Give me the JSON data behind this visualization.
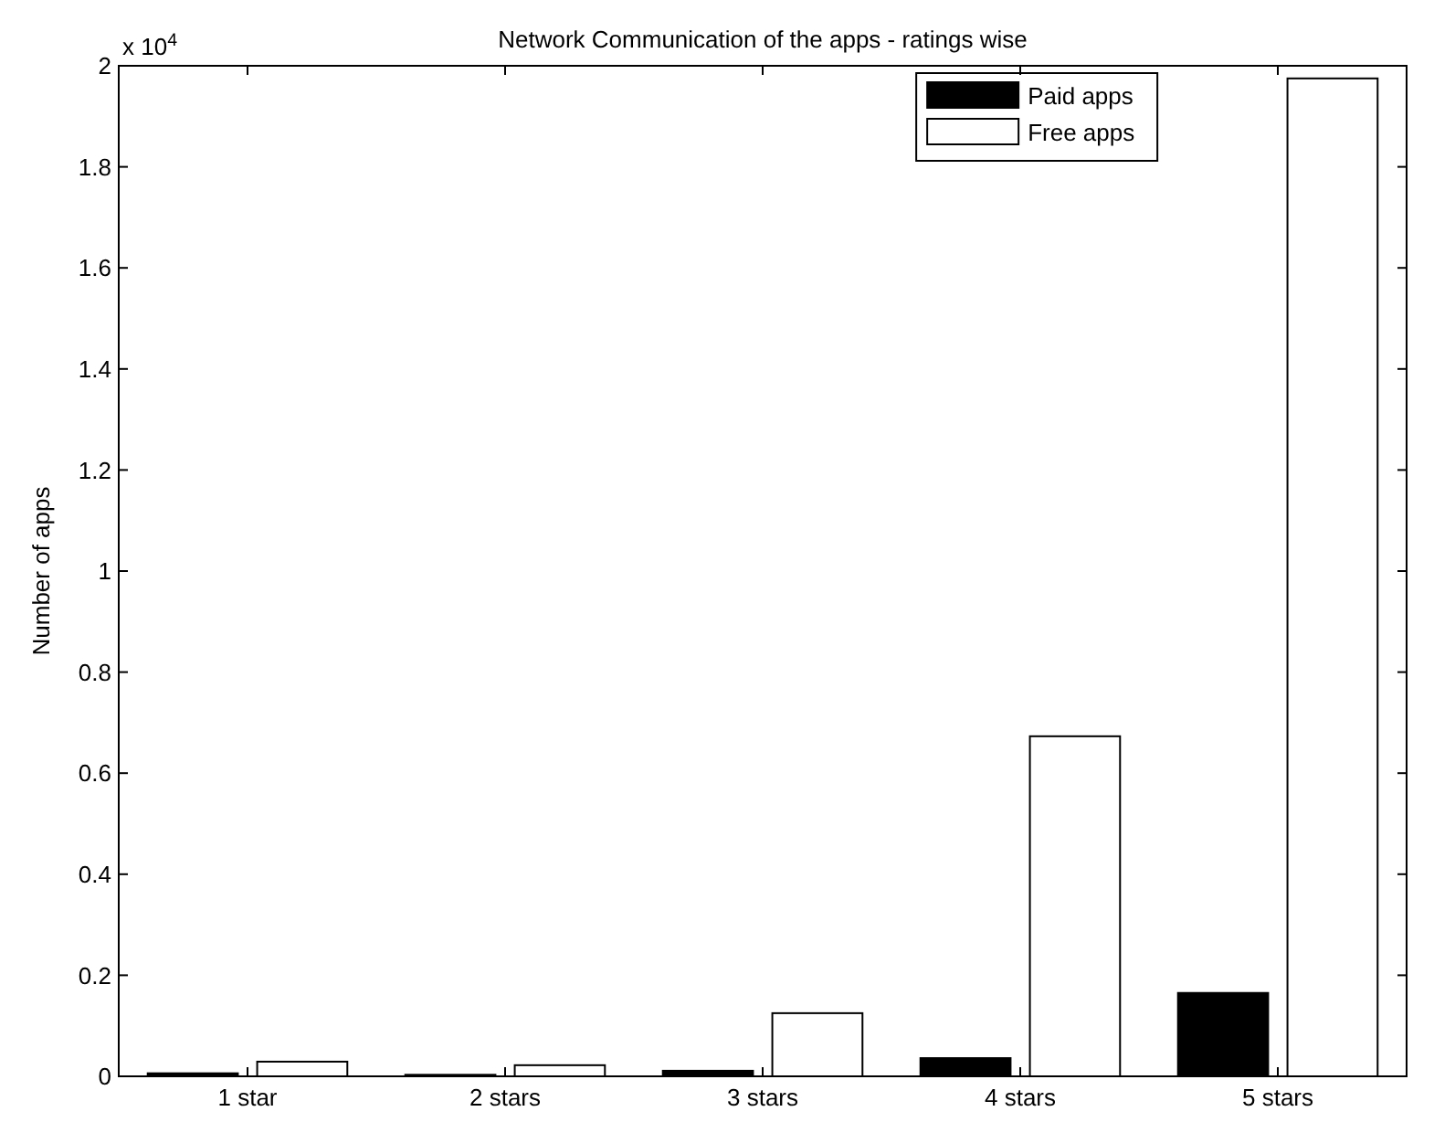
{
  "chart_data": {
    "type": "bar",
    "title": "Network Communication of the apps - ratings wise",
    "ylabel": "Number of apps",
    "categories": [
      "1 star",
      "2 stars",
      "3 stars",
      "4 stars",
      "5 stars"
    ],
    "series": [
      {
        "name": "Paid apps",
        "color": "#000000",
        "values": [
          0.006,
          0.003,
          0.011,
          0.036,
          0.165
        ]
      },
      {
        "name": "Free apps",
        "color": "#ffffff",
        "values": [
          0.029,
          0.022,
          0.125,
          0.673,
          1.975
        ]
      }
    ],
    "ylim": [
      0,
      2
    ],
    "yticks": [
      0,
      0.2,
      0.4,
      0.6,
      0.8,
      1,
      1.2,
      1.4,
      1.6,
      1.8,
      2
    ],
    "annotations": [
      "x 10$^{4}$"
    ],
    "legend": "top right",
    "grid": false
  }
}
